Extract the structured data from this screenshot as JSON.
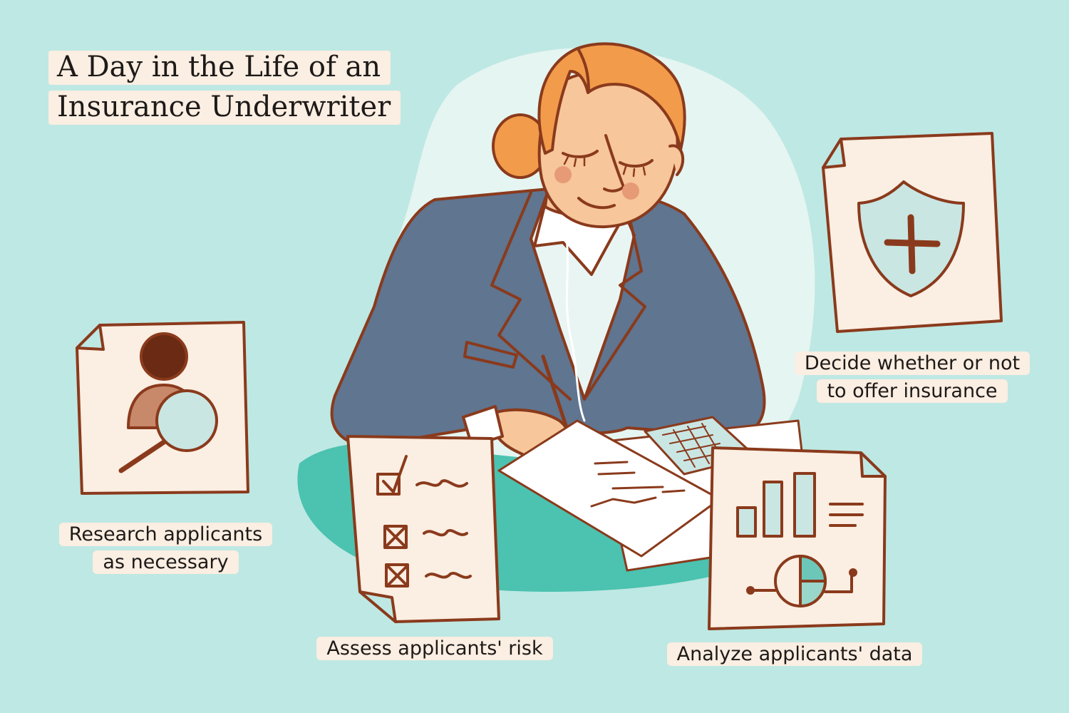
{
  "title": {
    "line1": "A Day in the Life of an",
    "line2": "Insurance Underwriter"
  },
  "captions": {
    "research": {
      "line1": "Research applicants",
      "line2": "as necessary"
    },
    "assess": {
      "line1": "Assess applicants' risk"
    },
    "analyze": {
      "line1": "Analyze applicants' data"
    },
    "decide": {
      "line1": "Decide whether or not",
      "line2": "to offer insurance"
    }
  },
  "colors": {
    "background": "#bee8e3",
    "blob": "#e5f5f2",
    "desk_shadow": "#4cc2b0",
    "label_background": "#fbeee2",
    "outline": "#8a3a1c",
    "jacket": "#5f7590",
    "hair": "#f29b4a",
    "skin": "#f7c69b"
  },
  "icons": [
    "magnifier-person-icon",
    "checklist-icon",
    "bar-pie-chart-icon",
    "shield-cross-icon"
  ]
}
